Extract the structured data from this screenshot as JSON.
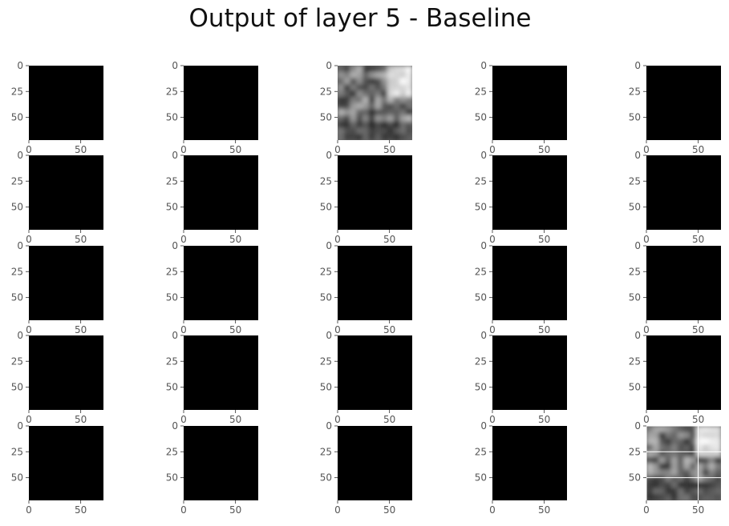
{
  "chart_data": {
    "type": "heatmap",
    "title": "Output of layer 5 - Baseline",
    "grid": {
      "rows": 5,
      "cols": 5
    },
    "colormap": "gray",
    "axes": {
      "xlim": [
        0,
        72
      ],
      "ylim": [
        72,
        0
      ],
      "xticks": [
        0,
        50
      ],
      "xtick_labels": [
        "0",
        "50"
      ],
      "yticks": [
        0,
        25,
        50
      ],
      "ytick_labels": [
        "0",
        "25",
        "50"
      ],
      "show_xtick_labels_on_all_rows": true
    },
    "panels": [
      {
        "row": 0,
        "col": 0,
        "content": "blank"
      },
      {
        "row": 0,
        "col": 1,
        "content": "blank"
      },
      {
        "row": 0,
        "col": 2,
        "content": "image",
        "gridlines": false
      },
      {
        "row": 0,
        "col": 3,
        "content": "blank"
      },
      {
        "row": 0,
        "col": 4,
        "content": "blank"
      },
      {
        "row": 1,
        "col": 0,
        "content": "blank"
      },
      {
        "row": 1,
        "col": 1,
        "content": "blank"
      },
      {
        "row": 1,
        "col": 2,
        "content": "blank"
      },
      {
        "row": 1,
        "col": 3,
        "content": "blank"
      },
      {
        "row": 1,
        "col": 4,
        "content": "blank"
      },
      {
        "row": 2,
        "col": 0,
        "content": "blank"
      },
      {
        "row": 2,
        "col": 1,
        "content": "blank"
      },
      {
        "row": 2,
        "col": 2,
        "content": "blank"
      },
      {
        "row": 2,
        "col": 3,
        "content": "blank"
      },
      {
        "row": 2,
        "col": 4,
        "content": "blank"
      },
      {
        "row": 3,
        "col": 0,
        "content": "blank"
      },
      {
        "row": 3,
        "col": 1,
        "content": "blank"
      },
      {
        "row": 3,
        "col": 2,
        "content": "blank"
      },
      {
        "row": 3,
        "col": 3,
        "content": "blank"
      },
      {
        "row": 3,
        "col": 4,
        "content": "blank"
      },
      {
        "row": 4,
        "col": 0,
        "content": "blank"
      },
      {
        "row": 4,
        "col": 1,
        "content": "blank"
      },
      {
        "row": 4,
        "col": 2,
        "content": "blank"
      },
      {
        "row": 4,
        "col": 3,
        "content": "blank"
      },
      {
        "row": 4,
        "col": 4,
        "content": "image",
        "gridlines": true
      }
    ]
  }
}
